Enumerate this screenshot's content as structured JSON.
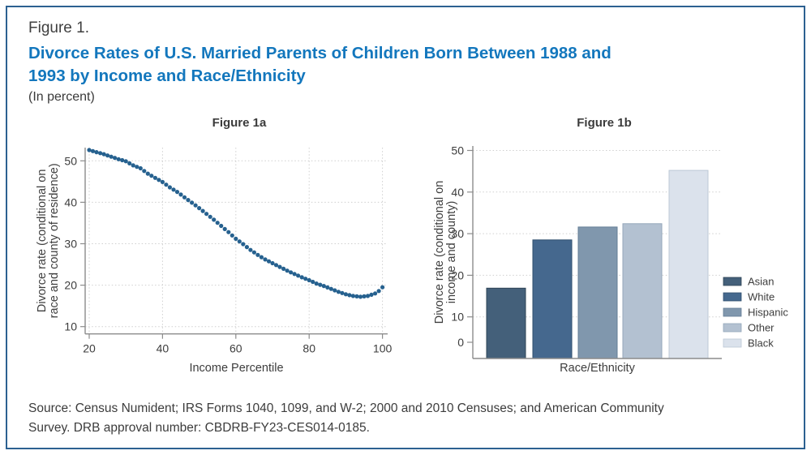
{
  "header": {
    "figure_label": "Figure 1.",
    "title_lines": [
      "Divorce Rates of U.S. Married Parents of Children Born Between 1988 and",
      "1993 by Income and Race/Ethnicity"
    ],
    "title_full": "Divorce Rates of U.S. Married Parents of Children Born Between 1988 and 1993 by Income and Race/Ethnicity",
    "subtitle": "(In percent)"
  },
  "footer": {
    "source_lines": [
      "Source: Census Numident; IRS Forms 1040, 1099, and W-2; 2000 and 2010 Censuses; and American Community",
      "Survey. DRB approval number: CBDRB-FY23-CES014-0185."
    ]
  },
  "colors": {
    "title_blue": "#1377bd",
    "border_blue": "#2c6191",
    "scatter_dot": "#26618f",
    "grid_gray": "#cfcfcf",
    "axis_gray": "#8c8c8c",
    "text_gray": "#3c3c3c"
  },
  "chart_data": [
    {
      "type": "scatter",
      "title": "Figure 1a",
      "xlabel": "Income Percentile",
      "ylabel_lines": [
        "Divorce rate (conditional on",
        "race and county of residence)"
      ],
      "xticks": [
        20,
        40,
        60,
        80,
        100
      ],
      "yticks": [
        10,
        20,
        30,
        40,
        50
      ],
      "xlim": [
        18,
        103
      ],
      "ylim": [
        8,
        53.5
      ],
      "grid": true,
      "point_color": "#26618f",
      "points": [
        [
          20,
          52.6
        ],
        [
          21,
          52.35
        ],
        [
          22,
          52.1
        ],
        [
          23,
          51.85
        ],
        [
          24,
          51.6
        ],
        [
          25,
          51.3
        ],
        [
          26,
          51.0
        ],
        [
          27,
          50.7
        ],
        [
          28,
          50.4
        ],
        [
          29,
          50.15
        ],
        [
          30,
          49.9
        ],
        [
          31,
          49.4
        ],
        [
          32,
          48.9
        ],
        [
          33,
          48.55
        ],
        [
          34,
          48.2
        ],
        [
          35,
          47.55
        ],
        [
          36,
          46.9
        ],
        [
          37,
          46.4
        ],
        [
          38,
          45.9
        ],
        [
          39,
          45.4
        ],
        [
          40,
          44.9
        ],
        [
          41,
          44.25
        ],
        [
          42,
          43.6
        ],
        [
          43,
          43.05
        ],
        [
          44,
          42.5
        ],
        [
          45,
          41.85
        ],
        [
          46,
          41.2
        ],
        [
          47,
          40.55
        ],
        [
          48,
          39.9
        ],
        [
          49,
          39.25
        ],
        [
          50,
          38.6
        ],
        [
          51,
          37.9
        ],
        [
          52,
          37.2
        ],
        [
          53,
          36.5
        ],
        [
          54,
          35.8
        ],
        [
          55,
          35.05
        ],
        [
          56,
          34.3
        ],
        [
          57,
          33.55
        ],
        [
          58,
          32.8
        ],
        [
          59,
          32.0
        ],
        [
          60,
          31.2
        ],
        [
          61,
          30.55
        ],
        [
          62,
          29.9
        ],
        [
          63,
          29.2
        ],
        [
          64,
          28.5
        ],
        [
          65,
          27.9
        ],
        [
          66,
          27.3
        ],
        [
          67,
          26.75
        ],
        [
          68,
          26.2
        ],
        [
          69,
          25.75
        ],
        [
          70,
          25.3
        ],
        [
          71,
          24.85
        ],
        [
          72,
          24.4
        ],
        [
          73,
          23.95
        ],
        [
          74,
          23.5
        ],
        [
          75,
          23.1
        ],
        [
          76,
          22.7
        ],
        [
          77,
          22.3
        ],
        [
          78,
          21.9
        ],
        [
          79,
          21.55
        ],
        [
          80,
          21.2
        ],
        [
          81,
          20.8
        ],
        [
          82,
          20.4
        ],
        [
          83,
          20.1
        ],
        [
          84,
          19.8
        ],
        [
          85,
          19.45
        ],
        [
          86,
          19.1
        ],
        [
          87,
          18.75
        ],
        [
          88,
          18.4
        ],
        [
          89,
          18.1
        ],
        [
          90,
          17.8
        ],
        [
          91,
          17.6
        ],
        [
          92,
          17.4
        ],
        [
          93,
          17.3
        ],
        [
          94,
          17.2
        ],
        [
          95,
          17.3
        ],
        [
          96,
          17.4
        ],
        [
          97,
          17.7
        ],
        [
          98,
          18.0
        ],
        [
          99,
          18.6
        ],
        [
          100,
          19.5
        ]
      ]
    },
    {
      "type": "bar",
      "title": "Figure 1b",
      "xlabel": "Race/Ethnicity",
      "ylabel_lines": [
        "Divorce rate (conditional on",
        "income and county)"
      ],
      "yticks": [
        0,
        10,
        20,
        30,
        40,
        50
      ],
      "ylim": [
        0,
        52
      ],
      "grid": true,
      "categories": [
        "Asian",
        "White",
        "Hispanic",
        "Other",
        "Black"
      ],
      "values": [
        16.9,
        28.5,
        31.6,
        32.4,
        45.2
      ],
      "bar_colors": [
        "#44607a",
        "#45688e",
        "#8097ad",
        "#b3c1d1",
        "#dbe2ec"
      ],
      "bar_border_colors": [
        "#2f4456",
        "#31506f",
        "#657e96",
        "#94a7ba",
        "#bcc8d6"
      ],
      "legend": [
        "Asian",
        "White",
        "Hispanic",
        "Other",
        "Black"
      ],
      "legend_position": "right"
    }
  ]
}
